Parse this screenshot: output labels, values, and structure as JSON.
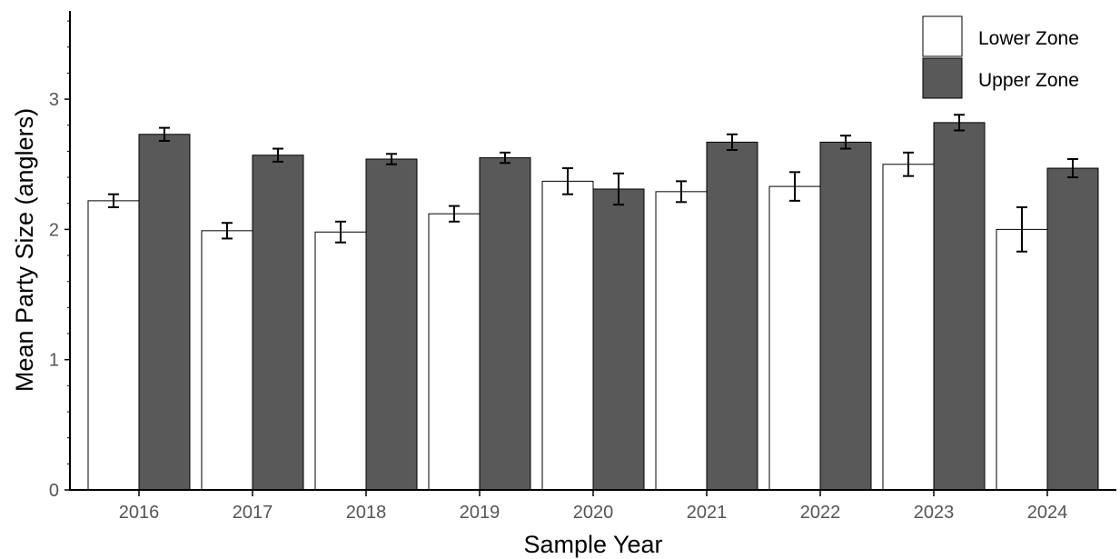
{
  "chart_data": {
    "type": "bar",
    "categories": [
      "2016",
      "2017",
      "2018",
      "2019",
      "2020",
      "2021",
      "2022",
      "2023",
      "2024"
    ],
    "series": [
      {
        "name": "Lower Zone",
        "color": "#ffffff",
        "values": [
          2.22,
          1.99,
          1.98,
          2.12,
          2.37,
          2.29,
          2.33,
          2.5,
          2.0
        ],
        "error": [
          0.05,
          0.06,
          0.08,
          0.06,
          0.1,
          0.08,
          0.11,
          0.09,
          0.17
        ]
      },
      {
        "name": "Upper Zone",
        "color": "#595959",
        "values": [
          2.73,
          2.57,
          2.54,
          2.55,
          2.31,
          2.67,
          2.67,
          2.82,
          2.47
        ],
        "error": [
          0.05,
          0.05,
          0.04,
          0.04,
          0.12,
          0.06,
          0.05,
          0.06,
          0.07
        ]
      }
    ],
    "xlabel": "Sample Year",
    "ylabel": "Mean Party Size (anglers)",
    "ylim": [
      0,
      3.7
    ],
    "yticks": [
      "0",
      "1",
      "2",
      "3"
    ],
    "legend_position": "top-right",
    "grid": false
  }
}
